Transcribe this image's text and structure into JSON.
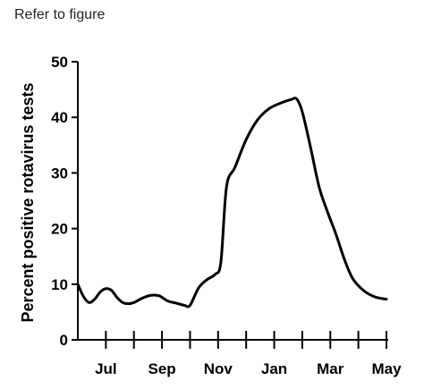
{
  "caption": "Refer to figure",
  "chart_data": {
    "type": "line",
    "title": "",
    "xlabel": "",
    "ylabel": "Percent positive rotavirus tests",
    "ylim": [
      0,
      50
    ],
    "yticks": [
      0,
      10,
      20,
      30,
      40,
      50
    ],
    "xlim": [
      0,
      11
    ],
    "xtick_labels": [
      {
        "x": 1,
        "label": "Jul"
      },
      {
        "x": 3,
        "label": "Sep"
      },
      {
        "x": 5,
        "label": "Nov"
      },
      {
        "x": 7,
        "label": "Jan"
      },
      {
        "x": 9,
        "label": "Mar"
      },
      {
        "x": 11,
        "label": "May"
      }
    ],
    "xtick_marks": [
      1,
      2,
      3,
      4,
      5,
      6,
      7,
      8,
      9,
      10,
      11
    ],
    "series": [
      {
        "color": "#000000",
        "points": [
          [
            0.0,
            10
          ],
          [
            0.2,
            7.8
          ],
          [
            0.4,
            6.7
          ],
          [
            0.6,
            7.3
          ],
          [
            0.8,
            8.6
          ],
          [
            1.0,
            9.2
          ],
          [
            1.2,
            8.9
          ],
          [
            1.4,
            7.6
          ],
          [
            1.6,
            6.7
          ],
          [
            1.8,
            6.5
          ],
          [
            2.0,
            6.7
          ],
          [
            2.3,
            7.5
          ],
          [
            2.6,
            8.0
          ],
          [
            2.9,
            7.9
          ],
          [
            3.2,
            7.0
          ],
          [
            3.5,
            6.6
          ],
          [
            3.8,
            6.2
          ],
          [
            4.0,
            6.2
          ],
          [
            4.3,
            9.3
          ],
          [
            4.6,
            10.8
          ],
          [
            4.9,
            11.8
          ],
          [
            5.1,
            14.0
          ],
          [
            5.3,
            27.5
          ],
          [
            5.6,
            31.0
          ],
          [
            6.0,
            36.0
          ],
          [
            6.4,
            39.5
          ],
          [
            6.8,
            41.5
          ],
          [
            7.2,
            42.5
          ],
          [
            7.6,
            43.2
          ],
          [
            7.8,
            43.3
          ],
          [
            8.0,
            41.0
          ],
          [
            8.3,
            34.5
          ],
          [
            8.6,
            27.5
          ],
          [
            8.9,
            23.0
          ],
          [
            9.2,
            19.0
          ],
          [
            9.5,
            14.5
          ],
          [
            9.8,
            11.0
          ],
          [
            10.2,
            8.8
          ],
          [
            10.6,
            7.7
          ],
          [
            11.0,
            7.3
          ]
        ]
      }
    ]
  }
}
